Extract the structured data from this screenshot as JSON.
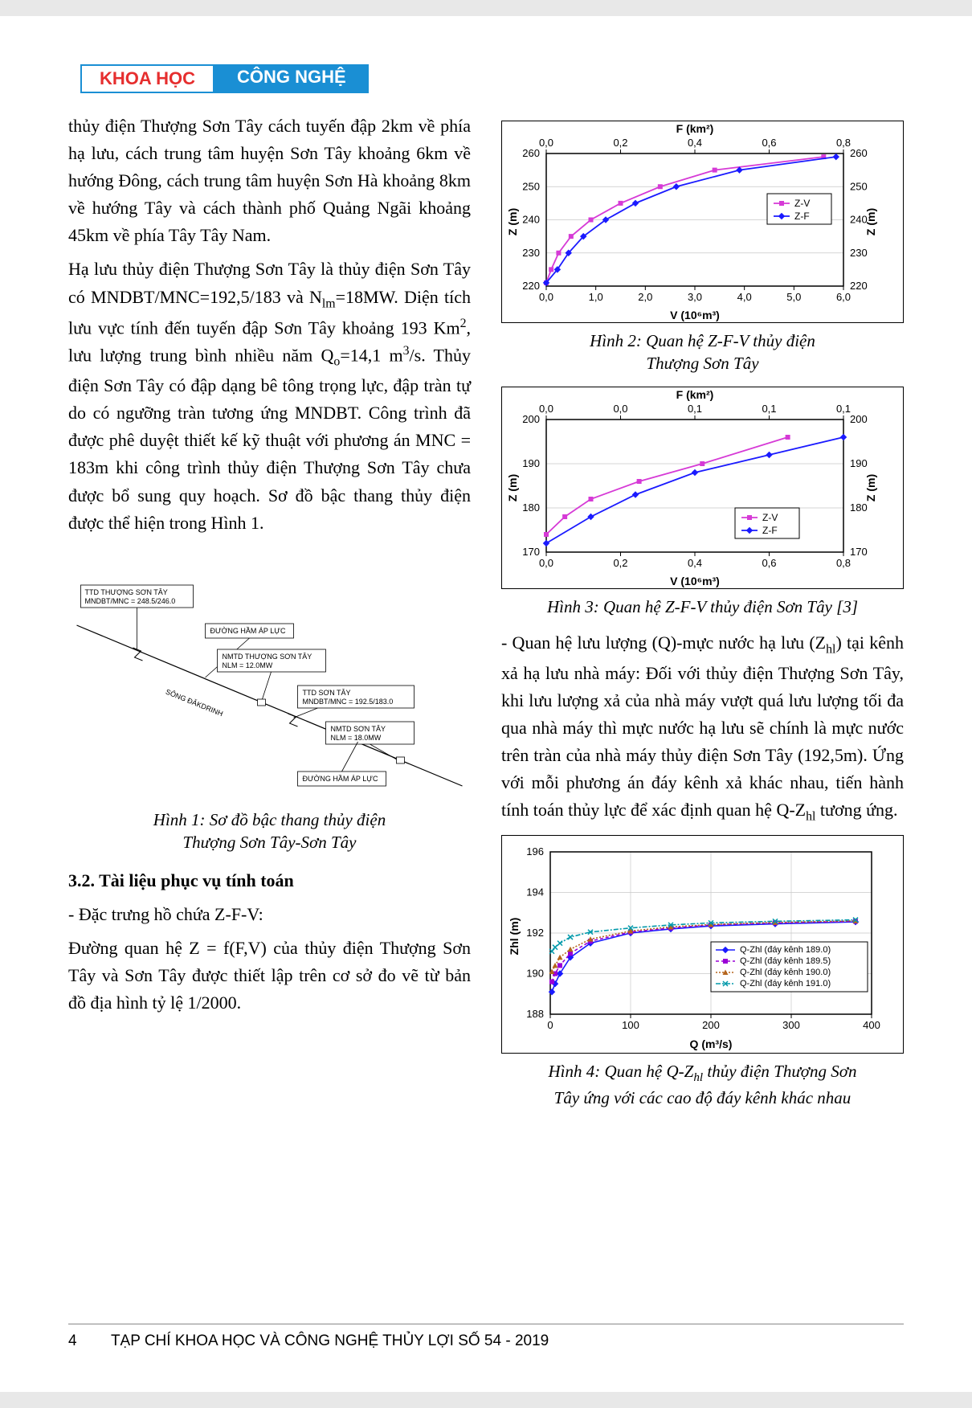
{
  "banner": {
    "left": "KHOA HỌC",
    "right": "CÔNG NGHỆ"
  },
  "left_col": {
    "p1": "thủy điện Thượng Sơn Tây cách tuyến đập 2km về phía hạ lưu, cách trung tâm huyện Sơn Tây khoảng 6km về hướng Đông, cách trung tâm huyện Sơn Hà khoảng 8km về hướng Tây và cách thành phố Quảng Ngãi khoảng 45km về phía Tây Tây Nam.",
    "p2_a": "Hạ lưu thủy điện Thượng Sơn Tây là thủy điện Sơn Tây có MNDBT/MNC=192,5/183 và N",
    "p2_b": "=18MW. Diện tích lưu vực tính đến tuyến đập Sơn Tây khoảng 193 Km",
    "p2_c": ", lưu lượng trung bình nhiều năm Q",
    "p2_d": "=14,1 m",
    "p2_e": "/s. Thủy điện Sơn Tây có đập dạng bê tông trọng lực, đập tràn tự do có ngưỡng tràn tương ứng MNDBT. Công trình đã được phê duyệt thiết kế kỹ thuật với phương án MNC = 183m khi công trình thủy điện Thượng Sơn Tây chưa được bổ sung quy hoạch. Sơ đồ bậc thang thủy điện được thể hiện trong Hình 1.",
    "fig1_cap_a": "Hình 1: Sơ đồ bậc thang thủy điện",
    "fig1_cap_b": "Thượng Sơn Tây-Sơn Tây",
    "sec32": "3.2. Tài liệu phục vụ tính toán",
    "p3": "- Đặc trưng hồ chứa Z-F-V:",
    "p4": "Đường quan hệ Z = f(F,V) của thủy điện Thượng Sơn Tây và Sơn Tây được thiết lập trên cơ sở đo vẽ từ bản đồ địa hình tỷ lệ 1/2000."
  },
  "right_col": {
    "fig2_cap_a": "Hình 2: Quan hệ Z-F-V thủy điện",
    "fig2_cap_b": "Thượng Sơn Tây",
    "fig3_cap": "Hình 3: Quan hệ Z-F-V thủy điện Sơn Tây [3]",
    "p5_a": "- Quan hệ lưu lượng (Q)-mực nước hạ lưu (Z",
    "p5_b": ") tại kênh xả hạ lưu nhà máy: Đối với thủy điện Thượng Sơn Tây, khi lưu lượng xả của nhà máy vượt quá lưu lượng tối đa qua nhà máy thì mực nước hạ lưu sẽ chính là mực nước trên tràn của nhà máy thủy điện Sơn Tây (192,5m). Ứng với mỗi phương án đáy kênh xả khác nhau, tiến hành tính toán thủy lực để xác định quan hệ Q-Z",
    "p5_c": " tương ứng.",
    "fig4_cap_a": "Hình 4: Quan hệ Q-Z",
    "fig4_cap_b": " thủy điện Thượng Sơn",
    "fig4_cap_c": "Tây ứng với các cao độ đáy kênh khác nhau"
  },
  "diagram": {
    "river": "SÔNG ĐĂKDRINH",
    "box1_a": "TTD THƯỢNG SƠN TÂY",
    "box1_b": "MNDBT/MNC = 248.5/246.0",
    "box2": "ĐƯỜNG HẦM ÁP LỰC",
    "box3_a": "NMTD THƯỢNG SƠN TÂY",
    "box3_b": "NLM = 12.0MW",
    "box4_a": "TTD SƠN TÂY",
    "box4_b": "MNDBT/MNC = 192.5/183.0",
    "box5_a": "NMTD SƠN TÂY",
    "box5_b": "NLM = 18.0MW",
    "box6": "ĐƯỜNG HẦM ÁP LỰC"
  },
  "chart2": {
    "type": "line",
    "top_axis_title": "F (km²)",
    "top_ticks": [
      "0,0",
      "0,2",
      "0,4",
      "0,6",
      "0,8"
    ],
    "bottom_axis_title": "V (10⁶m³)",
    "bottom_ticks": [
      "0,0",
      "1,0",
      "2,0",
      "3,0",
      "4,0",
      "5,0",
      "6,0"
    ],
    "y_title": "Z (m)",
    "y_ticks": [
      "220",
      "230",
      "240",
      "250",
      "260"
    ],
    "legend": [
      "Z-V",
      "Z-F"
    ],
    "colors": {
      "zv": "#d63ad6",
      "zf": "#1a1aff"
    },
    "bg": "#ffffff",
    "series_zv_v": [
      0.0,
      0.1,
      0.25,
      0.5,
      0.9,
      1.5,
      2.3,
      3.4,
      5.6
    ],
    "series_zv_z": [
      221,
      225,
      230,
      235,
      240,
      245,
      250,
      255,
      259
    ],
    "series_zf_f": [
      0.0,
      0.03,
      0.06,
      0.1,
      0.16,
      0.24,
      0.35,
      0.52,
      0.78
    ],
    "series_zf_z": [
      221,
      225,
      230,
      235,
      240,
      245,
      250,
      255,
      259
    ]
  },
  "chart3": {
    "type": "line",
    "top_axis_title": "F (km²)",
    "top_ticks": [
      "0,0",
      "0,0",
      "0,1",
      "0,1",
      "0,1"
    ],
    "bottom_axis_title": "V (10⁶m³)",
    "bottom_ticks": [
      "0,0",
      "0,2",
      "0,4",
      "0,6",
      "0,8"
    ],
    "y_title": "Z (m)",
    "y_ticks": [
      "170",
      "180",
      "190",
      "200"
    ],
    "legend": [
      "Z-V",
      "Z-F"
    ],
    "colors": {
      "zv": "#d63ad6",
      "zf": "#1a1aff"
    },
    "bg": "#ffffff",
    "series_zv_v": [
      0.0,
      0.05,
      0.12,
      0.25,
      0.42,
      0.65
    ],
    "series_zv_z": [
      174,
      178,
      182,
      186,
      190,
      196
    ],
    "series_zf_f": [
      0.0,
      0.015,
      0.03,
      0.05,
      0.075,
      0.1
    ],
    "series_zf_z": [
      172,
      178,
      183,
      188,
      192,
      196
    ]
  },
  "chart4": {
    "type": "line",
    "x_title": "Q (m³/s)",
    "x_ticks": [
      "0",
      "100",
      "200",
      "300",
      "400"
    ],
    "y_title": "Zhl (m)",
    "y_ticks": [
      "188",
      "190",
      "192",
      "194",
      "196"
    ],
    "legend": [
      "Q-Zhl (đáy kênh 189.0)",
      "Q-Zhl (đáy kênh 189.5)",
      "Q-Zhl (đáy kênh 190.0)",
      "Q-Zhl (đáy kênh 191.0)"
    ],
    "colors": [
      "#1a1aff",
      "#9a00d6",
      "#b5651d",
      "#0099aa"
    ],
    "bg": "#ffffff",
    "q": [
      2,
      6,
      12,
      25,
      50,
      100,
      150,
      200,
      280,
      380
    ],
    "s189_0": [
      189.1,
      189.5,
      190.0,
      190.8,
      191.5,
      192.0,
      192.2,
      192.35,
      192.45,
      192.55
    ],
    "s189_5": [
      189.6,
      190.0,
      190.4,
      191.0,
      191.6,
      192.05,
      192.25,
      192.4,
      192.5,
      192.58
    ],
    "s190_0": [
      190.1,
      190.4,
      190.8,
      191.2,
      191.7,
      192.1,
      192.3,
      192.42,
      192.52,
      192.6
    ],
    "s191_0": [
      191.1,
      191.3,
      191.5,
      191.8,
      192.05,
      192.25,
      192.4,
      192.5,
      192.58,
      192.65
    ]
  },
  "footer": {
    "page": "4",
    "text": "TẠP CHÍ KHOA HỌC VÀ CÔNG NGHỆ THỦY LỢI SỐ 54 - 2019"
  }
}
